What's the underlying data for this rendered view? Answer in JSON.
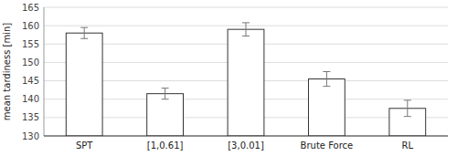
{
  "chart_data": {
    "type": "bar",
    "categories": [
      "SPT",
      "[1,0.61]",
      "[3,0.01]",
      "Brute Force",
      "RL"
    ],
    "values": [
      158.0,
      141.5,
      159.0,
      145.5,
      137.5
    ],
    "errors": [
      1.5,
      1.5,
      1.8,
      2.0,
      2.2
    ],
    "color": "#ffffff",
    "ylabel": "mean tardiness [min]",
    "ylim": [
      130,
      165
    ],
    "yticks": [
      130,
      135,
      140,
      145,
      150,
      155,
      160,
      165
    ],
    "grid": true
  }
}
